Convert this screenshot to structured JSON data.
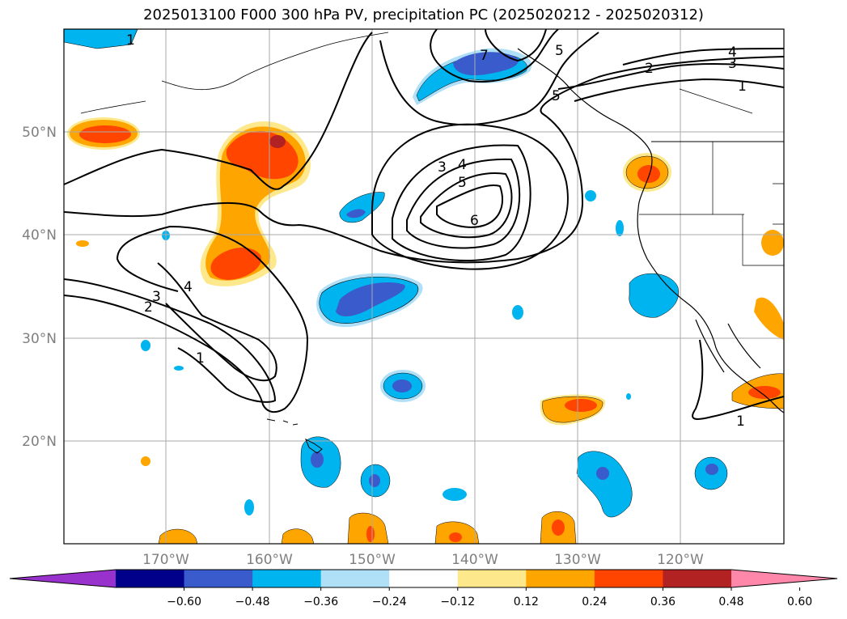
{
  "title": "2025013100 F000 300 hPa PV, precipitation PC (2025020212 - 2025020312)",
  "lat_labels": [
    "50°N",
    "40°N",
    "30°N",
    "20°N"
  ],
  "lon_labels": [
    "170°W",
    "160°W",
    "150°W",
    "140°W",
    "130°W",
    "120°W"
  ],
  "contour_labels": [
    "1",
    "2",
    "3",
    "4",
    "5",
    "6",
    "7",
    "3",
    "4",
    "5",
    "5",
    "4",
    "3",
    "2",
    "1",
    "1",
    "1"
  ],
  "colorbar": {
    "ticks": [
      "−0.60",
      "−0.48",
      "−0.36",
      "−0.24",
      "−0.12",
      "0.12",
      "0.24",
      "0.36",
      "0.48",
      "0.60"
    ],
    "colors": [
      "#9932cc",
      "#00008b",
      "#3a5bcc",
      "#00b4f0",
      "#b0e0f8",
      "#ffffff",
      "#fde88c",
      "#ffa500",
      "#ff4500",
      "#b22222",
      "#ff88aa"
    ]
  },
  "colors": {
    "neg_strong": "#3a5bcc",
    "neg_mid": "#00b4f0",
    "neg_weak": "#b0e0f8",
    "pos_weak": "#fde88c",
    "pos_mid": "#ffa500",
    "pos_strong": "#ff4500",
    "pos_max": "#b22222",
    "gridline": "#aaaaaa"
  }
}
